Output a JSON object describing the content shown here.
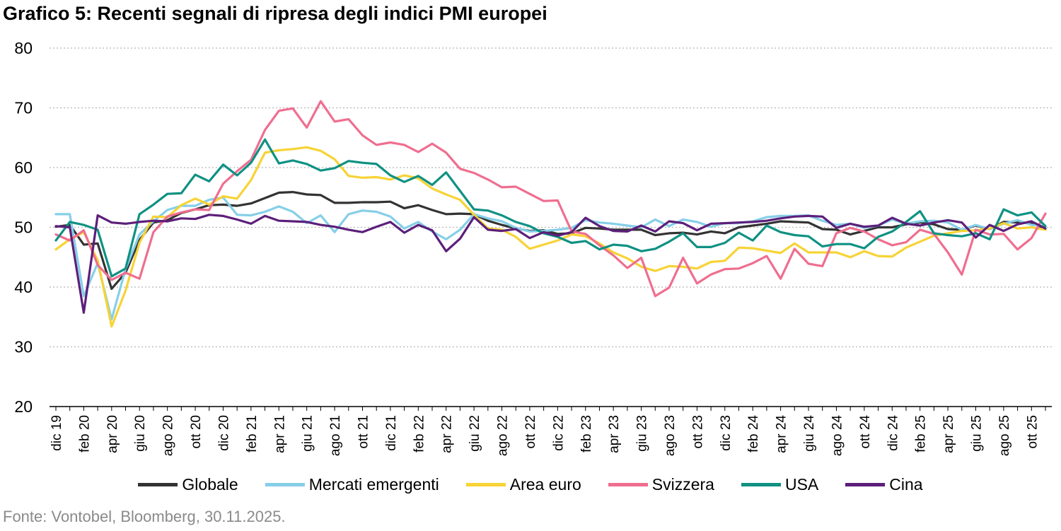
{
  "title": "Grafico 5: Recenti segnali di ripresa degli indici PMI europei",
  "source": "Fonte: Vontobel, Bloomberg, 30.11.2025.",
  "chart_data": {
    "type": "line",
    "title": "Grafico 5: Recenti segnali di ripresa degli indici PMI europei",
    "xlabel": "",
    "ylabel": "",
    "ylim": [
      20,
      80
    ],
    "yticks": [
      "20",
      "30",
      "40",
      "50",
      "60",
      "70",
      "80"
    ],
    "grid": "horizontal dotted",
    "legend_position": "bottom",
    "x_labels": [
      "dic 19",
      "feb 20",
      "apr 20",
      "giu 20",
      "ago 20",
      "ott 20",
      "dic 20",
      "feb 21",
      "apr 21",
      "giu 21",
      "ago 21",
      "ott 21",
      "dic 21",
      "feb 22",
      "apr 22",
      "giu 22",
      "ago 22",
      "ott 22",
      "dic 22",
      "feb 23",
      "apr 23",
      "giu 23",
      "ago 23",
      "ott 23",
      "dic 23",
      "feb 24",
      "apr 24",
      "giu 24",
      "ago 24",
      "ott 24",
      "dic 24",
      "feb 25",
      "apr 25",
      "giu 25",
      "ago 25",
      "ott 25"
    ],
    "x": [
      "dic 19",
      "gen 20",
      "feb 20",
      "mar 20",
      "apr 20",
      "mag 20",
      "giu 20",
      "lug 20",
      "ago 20",
      "set 20",
      "ott 20",
      "nov 20",
      "dic 20",
      "gen 21",
      "feb 21",
      "mar 21",
      "apr 21",
      "mag 21",
      "giu 21",
      "lug 21",
      "ago 21",
      "set 21",
      "ott 21",
      "nov 21",
      "dic 21",
      "gen 22",
      "feb 22",
      "mar 22",
      "apr 22",
      "mag 22",
      "giu 22",
      "lug 22",
      "ago 22",
      "set 22",
      "ott 22",
      "nov 22",
      "dic 22",
      "gen 23",
      "feb 23",
      "mar 23",
      "apr 23",
      "mag 23",
      "giu 23",
      "lug 23",
      "ago 23",
      "set 23",
      "ott 23",
      "nov 23",
      "dic 23",
      "gen 24",
      "feb 24",
      "mar 24",
      "apr 24",
      "mag 24",
      "giu 24",
      "lug 24",
      "ago 24",
      "set 24",
      "ott 24",
      "nov 24",
      "dic 24",
      "gen 25",
      "feb 25",
      "mar 25",
      "apr 25",
      "mag 25",
      "giu 25",
      "lug 25",
      "ago 25",
      "set 25",
      "ott 25",
      "nov 25"
    ],
    "series": [
      {
        "name": "Globale",
        "color": "#333333",
        "values": [
          50.1,
          50.4,
          47.1,
          47.3,
          39.7,
          42.4,
          47.9,
          50.8,
          51.2,
          52.4,
          53.0,
          53.7,
          53.8,
          53.6,
          54.0,
          54.9,
          55.8,
          55.9,
          55.5,
          55.4,
          54.1,
          54.1,
          54.2,
          54.2,
          54.3,
          53.2,
          53.7,
          52.9,
          52.2,
          52.3,
          52.2,
          51.1,
          50.4,
          49.8,
          49.4,
          49.5,
          48.9,
          49.0,
          49.9,
          49.8,
          49.6,
          49.6,
          49.6,
          48.7,
          49.0,
          49.1,
          48.8,
          49.3,
          49.0,
          50.0,
          50.3,
          50.6,
          51.0,
          50.9,
          50.8,
          49.7,
          49.6,
          48.8,
          49.4,
          50.0,
          50.0,
          50.5,
          50.8,
          50.5,
          49.7,
          49.6,
          50.3,
          49.7,
          50.9,
          50.8,
          50.7,
          49.8
        ]
      },
      {
        "name": "Mercati emergenti",
        "color": "#86cfe8",
        "values": [
          52.2,
          52.2,
          38.5,
          44.0,
          34.6,
          43.0,
          48.8,
          51.0,
          52.9,
          53.6,
          53.6,
          54.6,
          55.0,
          52.1,
          52.0,
          52.6,
          53.5,
          52.6,
          50.7,
          52.0,
          49.2,
          52.2,
          52.8,
          52.6,
          51.8,
          49.8,
          50.9,
          49.3,
          48.0,
          49.6,
          52.2,
          51.5,
          51.0,
          49.9,
          49.3,
          49.4,
          49.6,
          49.9,
          51.2,
          50.8,
          50.6,
          50.3,
          50.0,
          51.3,
          50.2,
          51.3,
          50.9,
          50.1,
          50.7,
          50.7,
          51.0,
          51.7,
          51.9,
          51.9,
          52.0,
          51.1,
          50.4,
          50.6,
          49.9,
          50.3,
          51.3,
          50.6,
          51.0,
          51.1,
          50.8,
          49.6,
          50.4,
          49.7,
          50.6,
          51.2,
          50.4,
          50.2
        ]
      },
      {
        "name": "Area euro",
        "color": "#f7d335",
        "values": [
          46.3,
          48.0,
          49.2,
          44.5,
          33.4,
          39.4,
          47.4,
          51.8,
          51.7,
          53.7,
          54.8,
          53.8,
          55.2,
          54.8,
          57.9,
          62.5,
          62.9,
          63.1,
          63.4,
          62.8,
          61.4,
          58.6,
          58.3,
          58.4,
          58.0,
          58.7,
          58.2,
          56.5,
          55.5,
          54.6,
          52.1,
          49.8,
          49.6,
          48.4,
          46.4,
          47.1,
          47.8,
          48.8,
          48.5,
          47.3,
          45.8,
          44.8,
          43.4,
          42.7,
          43.5,
          43.4,
          43.1,
          44.2,
          44.4,
          46.6,
          46.5,
          46.1,
          45.7,
          47.3,
          45.8,
          45.8,
          45.8,
          45.0,
          46.0,
          45.2,
          45.1,
          46.6,
          47.6,
          48.6,
          49.0,
          49.4,
          49.5,
          49.8,
          50.7,
          49.8,
          50.0,
          49.6
        ]
      },
      {
        "name": "Svizzera",
        "color": "#ef6e8f",
        "values": [
          48.8,
          47.8,
          49.5,
          43.7,
          41.2,
          42.4,
          41.4,
          49.2,
          51.8,
          52.5,
          53.0,
          52.9,
          57.3,
          59.4,
          61.3,
          66.3,
          69.5,
          69.9,
          66.7,
          71.1,
          67.7,
          68.1,
          65.4,
          63.8,
          64.2,
          63.8,
          62.6,
          64.0,
          62.5,
          59.8,
          59.1,
          58.0,
          56.7,
          56.8,
          55.6,
          54.4,
          54.5,
          49.3,
          48.9,
          47.0,
          45.3,
          43.2,
          44.9,
          38.5,
          39.9,
          44.9,
          40.6,
          42.1,
          43.0,
          43.1,
          44.0,
          45.2,
          41.4,
          46.4,
          43.9,
          43.5,
          49.0,
          49.9,
          49.3,
          48.0,
          47.0,
          47.5,
          49.6,
          48.9,
          45.8,
          42.1,
          49.6,
          48.8,
          48.9,
          46.3,
          48.2,
          52.3
        ]
      },
      {
        "name": "USA",
        "color": "#0f9183",
        "values": [
          47.8,
          50.9,
          50.4,
          49.6,
          41.8,
          43.1,
          52.2,
          53.8,
          55.6,
          55.7,
          58.8,
          57.7,
          60.5,
          58.7,
          60.8,
          64.7,
          60.7,
          61.2,
          60.6,
          59.5,
          59.9,
          61.1,
          60.8,
          60.6,
          58.7,
          57.6,
          58.6,
          57.1,
          59.2,
          56.1,
          53.0,
          52.8,
          52.0,
          50.9,
          50.2,
          49.0,
          48.4,
          47.4,
          47.7,
          46.3,
          47.1,
          46.9,
          46.0,
          46.4,
          47.6,
          49.0,
          46.7,
          46.7,
          47.4,
          49.1,
          47.8,
          50.3,
          49.2,
          48.7,
          48.5,
          46.8,
          47.2,
          47.2,
          46.5,
          48.4,
          49.3,
          50.9,
          52.7,
          49.0,
          48.7,
          48.5,
          49.0,
          48.0,
          53.0,
          52.0,
          52.5,
          50.2
        ]
      },
      {
        "name": "Cina",
        "color": "#5c1f7a",
        "values": [
          50.2,
          50.0,
          35.7,
          52.0,
          50.8,
          50.6,
          50.9,
          51.1,
          51.0,
          51.5,
          51.4,
          52.1,
          51.9,
          51.3,
          50.6,
          51.9,
          51.1,
          51.0,
          50.9,
          50.4,
          50.1,
          49.6,
          49.2,
          50.1,
          50.9,
          49.1,
          50.4,
          49.5,
          46.0,
          48.1,
          51.7,
          49.6,
          49.4,
          49.7,
          48.2,
          49.2,
          48.6,
          49.2,
          51.6,
          50.2,
          49.4,
          49.3,
          50.3,
          49.3,
          51.0,
          50.7,
          49.5,
          50.6,
          50.7,
          50.8,
          50.9,
          51.1,
          51.5,
          51.8,
          51.9,
          51.8,
          49.9,
          50.6,
          50.1,
          50.3,
          51.6,
          50.6,
          50.3,
          50.8,
          51.2,
          50.8,
          48.3,
          50.4,
          49.4,
          50.5,
          51.0,
          49.8
        ]
      }
    ]
  }
}
